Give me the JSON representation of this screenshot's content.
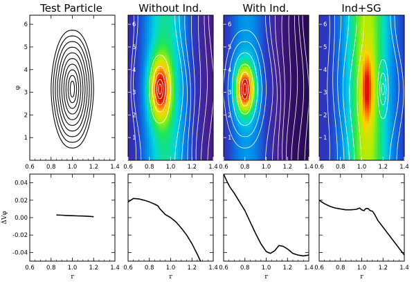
{
  "figure": {
    "titles": [
      "Test Particle",
      "Without Ind.",
      "With Ind.",
      "Ind+SG"
    ]
  },
  "chart_data": [
    {
      "type": "contour",
      "title": "Test Particle",
      "xlabel": "",
      "ylabel": "φ",
      "xlim": [
        0.6,
        1.4
      ],
      "ylim": [
        0,
        6.4
      ],
      "xticks": [
        "0.6",
        "0.8",
        "1.0",
        "1.2",
        "1.4"
      ],
      "yticks": [
        "1",
        "2",
        "3",
        "4",
        "5",
        "6"
      ],
      "background": "none",
      "line_color": "#000000",
      "center": [
        1.0,
        3.14
      ],
      "half_widths_r": [
        0.02,
        0.04,
        0.06,
        0.08,
        0.1,
        0.12,
        0.14,
        0.16,
        0.18,
        0.2
      ],
      "half_heights_phi": [
        0.35,
        0.6,
        0.85,
        1.1,
        1.35,
        1.6,
        1.85,
        2.1,
        2.35,
        2.6
      ]
    },
    {
      "type": "contour",
      "title": "Without Ind.",
      "xlim": [
        0.6,
        1.4
      ],
      "ylim": [
        0,
        6.4
      ],
      "xticks": [
        "0.6",
        "0.8",
        "1.0",
        "1.2",
        "1.4"
      ],
      "yticks": [
        "1",
        "2",
        "3",
        "4",
        "5",
        "6"
      ],
      "background": "density colormap",
      "line_color": "#ffffff",
      "center": [
        0.9,
        3.14
      ],
      "peak_level": 0.78,
      "half_widths_r": [
        0.015,
        0.03,
        0.05,
        0.07,
        0.1
      ],
      "half_heights_phi": [
        0.22,
        0.42,
        0.7,
        1.0,
        1.5
      ],
      "wave_lines_r": [
        1.07,
        1.12,
        1.17,
        1.22,
        1.27,
        1.32,
        1.37,
        0.64,
        0.68
      ]
    },
    {
      "type": "contour",
      "title": "With Ind.",
      "xlim": [
        0.6,
        1.4
      ],
      "ylim": [
        0,
        6.4
      ],
      "xticks": [
        "0.6",
        "0.8",
        "1.0",
        "1.2",
        "1.4"
      ],
      "yticks": [
        "1",
        "2",
        "3",
        "4",
        "5",
        "6"
      ],
      "background": "density colormap",
      "line_color": "#ffffff",
      "center": [
        0.8,
        3.14
      ],
      "peak_level": 1.0,
      "half_widths_r": [
        0.015,
        0.03,
        0.05,
        0.08,
        0.12,
        0.16,
        0.2
      ],
      "half_heights_phi": [
        0.25,
        0.45,
        0.75,
        1.1,
        1.6,
        2.1,
        2.6
      ],
      "wave_lines_r": [
        1.02,
        1.07,
        1.12,
        1.17,
        1.22,
        1.27,
        1.32,
        1.37
      ]
    },
    {
      "type": "contour",
      "title": "Ind+SG",
      "xlim": [
        0.6,
        1.4
      ],
      "ylim": [
        0,
        6.4
      ],
      "xticks": [
        "0.6",
        "0.8",
        "1.0",
        "1.2",
        "1.4"
      ],
      "yticks": [
        "1",
        "2",
        "3",
        "4",
        "5",
        "6"
      ],
      "background": "density colormap",
      "line_color": "#ffffff",
      "center": [
        1.2,
        3.14
      ],
      "peak_level": 1.0,
      "peak_r": 1.05,
      "half_widths_r": [
        0.015,
        0.03,
        0.05
      ],
      "half_heights_phi": [
        0.25,
        0.7,
        1.3
      ],
      "wave_lines_r": [
        0.68,
        0.74,
        0.8,
        0.86,
        0.92,
        0.98,
        1.3,
        1.35
      ]
    },
    {
      "type": "line",
      "title": "",
      "xlabel": "r",
      "ylabel": "ΔVφ",
      "xlim": [
        0.6,
        1.4
      ],
      "ylim": [
        -0.05,
        0.05
      ],
      "xticks": [
        "0.6",
        "0.8",
        "1.0",
        "1.2",
        "1.4"
      ],
      "yticks": [
        "0.04",
        "0.02",
        "0.00",
        "-0.02",
        "-0.04"
      ],
      "series": [
        {
          "x": [
            0.85,
            0.9,
            0.95,
            1.0,
            1.05,
            1.1,
            1.15,
            1.2
          ],
          "y": [
            0.003,
            0.0028,
            0.0025,
            0.0022,
            0.002,
            0.0018,
            0.0015,
            0.001
          ]
        }
      ]
    },
    {
      "type": "line",
      "title": "",
      "xlabel": "r",
      "xlim": [
        0.6,
        1.4
      ],
      "ylim": [
        -0.05,
        0.05
      ],
      "xticks": [
        "0.6",
        "0.8",
        "1.0",
        "1.2",
        "1.4"
      ],
      "series": [
        {
          "x": [
            0.6,
            0.65,
            0.7,
            0.75,
            0.8,
            0.85,
            0.88,
            0.9,
            0.95,
            1.0,
            1.05,
            1.1,
            1.15,
            1.2,
            1.25,
            1.28
          ],
          "y": [
            0.018,
            0.022,
            0.0215,
            0.02,
            0.018,
            0.0155,
            0.0135,
            0.01,
            0.0035,
            0.0,
            -0.005,
            -0.012,
            -0.02,
            -0.03,
            -0.042,
            -0.05
          ]
        }
      ]
    },
    {
      "type": "line",
      "title": "",
      "xlabel": "r",
      "xlim": [
        0.6,
        1.4
      ],
      "ylim": [
        -0.05,
        0.05
      ],
      "xticks": [
        "0.6",
        "0.8",
        "1.0",
        "1.2",
        "1.4"
      ],
      "series": [
        {
          "x": [
            0.6,
            0.63,
            0.66,
            0.7,
            0.75,
            0.8,
            0.85,
            0.9,
            0.95,
            1.0,
            1.04,
            1.08,
            1.12,
            1.16,
            1.2,
            1.25,
            1.3,
            1.35,
            1.4
          ],
          "y": [
            0.05,
            0.042,
            0.035,
            0.028,
            0.018,
            0.008,
            -0.005,
            -0.018,
            -0.03,
            -0.039,
            -0.041,
            -0.038,
            -0.032,
            -0.033,
            -0.036,
            -0.041,
            -0.043,
            -0.044,
            -0.043
          ]
        }
      ]
    },
    {
      "type": "line",
      "title": "",
      "xlabel": "r",
      "xlim": [
        0.6,
        1.4
      ],
      "ylim": [
        -0.05,
        0.05
      ],
      "xticks": [
        "0.6",
        "0.8",
        "1.0",
        "1.2",
        "1.4"
      ],
      "series": [
        {
          "x": [
            0.6,
            0.65,
            0.7,
            0.75,
            0.8,
            0.85,
            0.9,
            0.95,
            0.98,
            1.0,
            1.02,
            1.04,
            1.06,
            1.08,
            1.1,
            1.12,
            1.15,
            1.2,
            1.25,
            1.3,
            1.35,
            1.4
          ],
          "y": [
            0.02,
            0.016,
            0.013,
            0.011,
            0.01,
            0.009,
            0.009,
            0.0095,
            0.011,
            0.009,
            0.008,
            0.0105,
            0.0105,
            0.008,
            0.0075,
            0.004,
            -0.003,
            -0.011,
            -0.019,
            -0.027,
            -0.035,
            -0.043
          ]
        }
      ]
    }
  ]
}
